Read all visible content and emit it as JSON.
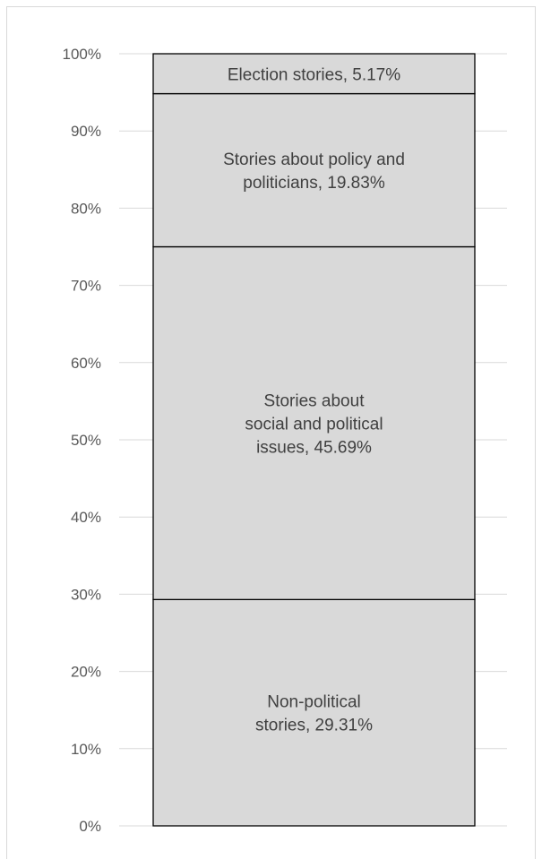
{
  "chart_data": {
    "type": "bar",
    "stacked": true,
    "categories": [
      ""
    ],
    "series": [
      {
        "name": "Non-political stories",
        "values": [
          29.31
        ]
      },
      {
        "name": "Stories about social and political issues",
        "values": [
          45.69
        ]
      },
      {
        "name": "Stories about policy and politicians",
        "values": [
          19.83
        ]
      },
      {
        "name": "Election stories",
        "values": [
          5.17
        ]
      }
    ],
    "data_labels": [
      [
        "Non-political",
        "stories, 29.31%"
      ],
      [
        "Stories about",
        "social and political",
        "issues, 45.69%"
      ],
      [
        "Stories about policy and",
        "politicians, 19.83%"
      ],
      [
        "Election stories, 5.17%"
      ]
    ],
    "ytick_labels": [
      "0%",
      "10%",
      "20%",
      "30%",
      "40%",
      "50%",
      "60%",
      "70%",
      "80%",
      "90%",
      "100%"
    ],
    "ylim": [
      0,
      100
    ],
    "grid": true,
    "legend": "none",
    "title": "",
    "xlabel": "",
    "ylabel": "",
    "colors": {
      "bar_fill": "#d9d9d9",
      "bar_stroke": "#000000",
      "grid": "#d9d9d9",
      "tick_text": "#595959",
      "label_text": "#404040",
      "frame": "#d9d9d9"
    }
  }
}
